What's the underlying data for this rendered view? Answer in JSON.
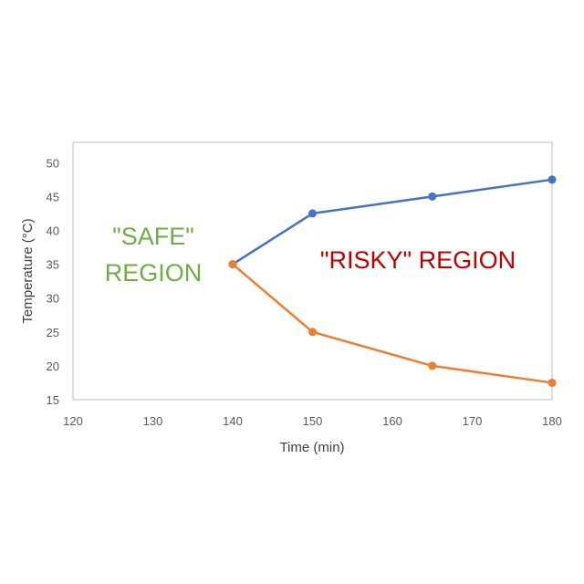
{
  "chart_data": {
    "type": "line",
    "title": "",
    "xlabel": "Time (min)",
    "ylabel": "Temperature (°C)",
    "xlim": [
      120,
      180
    ],
    "ylim": [
      15,
      53
    ],
    "xticks": [
      "120",
      "130",
      "140",
      "150",
      "160",
      "170",
      "180"
    ],
    "yticks": [
      "15",
      "20",
      "25",
      "30",
      "35",
      "40",
      "45",
      "50"
    ],
    "grid": false,
    "legend": "none",
    "series": [
      {
        "color": "#4472c4",
        "x": [
          140,
          150,
          165,
          180
        ],
        "y": [
          35,
          42.5,
          45,
          47.5
        ]
      },
      {
        "color": "#ed7d31",
        "x": [
          140,
          150,
          165,
          180
        ],
        "y": [
          35,
          25,
          20,
          17.5
        ]
      }
    ],
    "annotations": [
      {
        "lines": [
          "\"SAFE\"",
          "REGION"
        ],
        "color": "#70ad47"
      },
      {
        "lines": [
          "\"RISKY\" REGION"
        ],
        "color": "#c00000"
      }
    ]
  }
}
